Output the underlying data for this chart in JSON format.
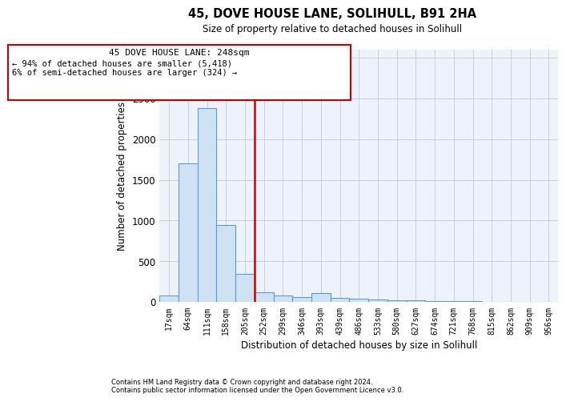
{
  "title": "45, DOVE HOUSE LANE, SOLIHULL, B91 2HA",
  "subtitle": "Size of property relative to detached houses in Solihull",
  "xlabel": "Distribution of detached houses by size in Solihull",
  "ylabel": "Number of detached properties",
  "footnote1": "Contains HM Land Registry data © Crown copyright and database right 2024.",
  "footnote2": "Contains public sector information licensed under the Open Government Licence v3.0.",
  "property_label": "45 DOVE HOUSE LANE: 248sqm",
  "annotation_line1": "← 94% of detached houses are smaller (5,418)",
  "annotation_line2": "6% of semi-detached houses are larger (324) →",
  "bin_labels": [
    "17sqm",
    "64sqm",
    "111sqm",
    "158sqm",
    "205sqm",
    "252sqm",
    "299sqm",
    "346sqm",
    "393sqm",
    "439sqm",
    "486sqm",
    "533sqm",
    "580sqm",
    "627sqm",
    "674sqm",
    "721sqm",
    "768sqm",
    "815sqm",
    "862sqm",
    "909sqm",
    "956sqm"
  ],
  "bar_heights": [
    75,
    1700,
    2380,
    940,
    340,
    120,
    80,
    55,
    110,
    45,
    35,
    25,
    18,
    15,
    10,
    5,
    5,
    4,
    4,
    4,
    4
  ],
  "bar_color": "#cfe2f3",
  "bar_edge_color": "#5b9bd5",
  "red_line_color": "#cc0000",
  "red_line_x": 4.5,
  "annotation_box_color": "#cc0000",
  "bg_color": "#eef2fb",
  "grid_color": "#c8d0e0",
  "ylim": [
    0,
    3100
  ],
  "yticks": [
    0,
    500,
    1000,
    1500,
    2000,
    2500,
    3000
  ]
}
